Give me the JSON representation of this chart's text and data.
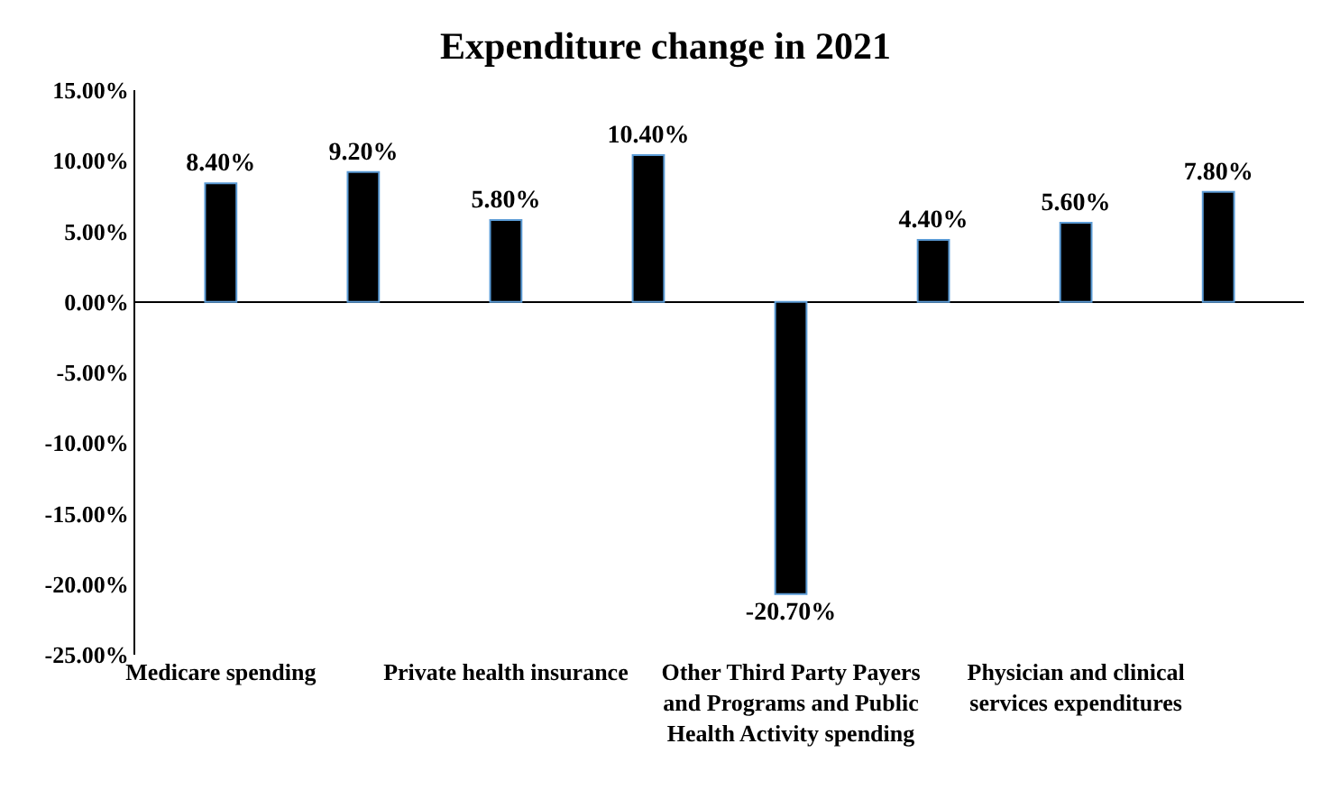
{
  "chart_data": {
    "type": "bar",
    "title": "Expenditure change in 2021",
    "categories": [
      "Medicare spending",
      null,
      "Private health insurance",
      null,
      "Other Third Party Payers and Programs and Public Health Activity spending",
      null,
      "Physician and clinical services expenditures",
      null
    ],
    "values": [
      8.4,
      9.2,
      5.8,
      10.4,
      -20.7,
      4.4,
      5.6,
      7.8
    ],
    "value_labels": [
      "8.40%",
      "9.20%",
      "5.80%",
      "10.40%",
      "-20.70%",
      "4.40%",
      "5.60%",
      "7.80%"
    ],
    "color": "#000000",
    "ylim": [
      -25,
      15
    ],
    "yticks": [
      {
        "value": -25,
        "label": "-25.00%"
      },
      {
        "value": -20,
        "label": "-20.00%"
      },
      {
        "value": -15,
        "label": "-15.00%"
      },
      {
        "value": -10,
        "label": "-10.00%"
      },
      {
        "value": -5,
        "label": "-5.00%"
      },
      {
        "value": 0,
        "label": "0.00%"
      },
      {
        "value": 5,
        "label": "5.00%"
      },
      {
        "value": 10,
        "label": "10.00%"
      },
      {
        "value": 15,
        "label": "15.00%"
      }
    ],
    "legend": false
  }
}
